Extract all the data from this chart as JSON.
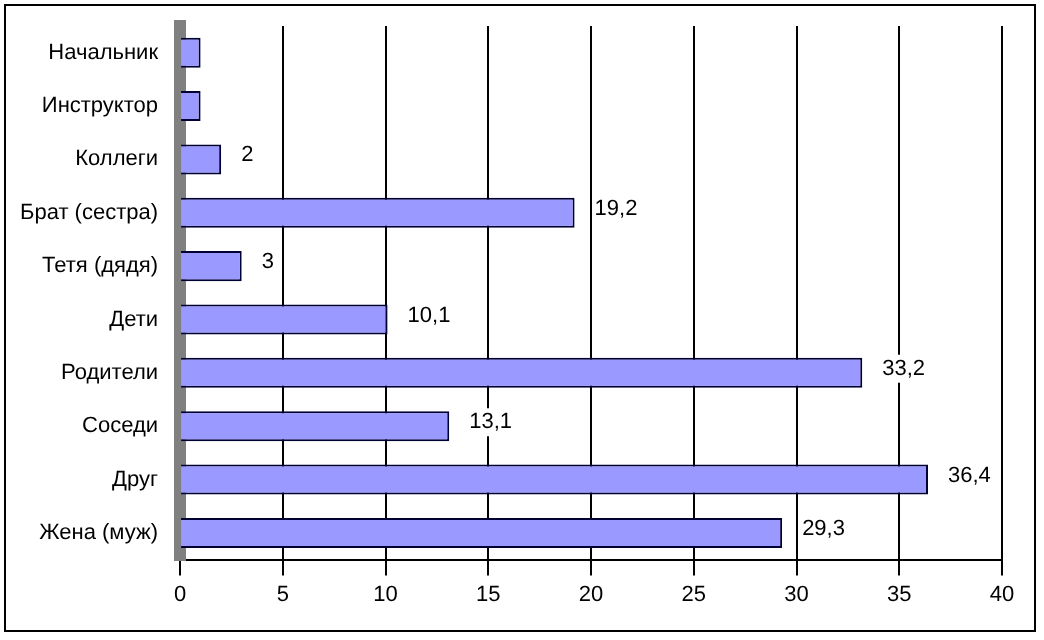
{
  "chart_data": {
    "type": "bar",
    "orientation": "horizontal",
    "categories": [
      "Начальник",
      "Инструктор",
      "Коллеги",
      "Брат (сестра)",
      "Тетя (дядя)",
      "Дети",
      "Родители",
      "Соседи",
      "Друг",
      "Жена (муж)"
    ],
    "values": [
      1,
      1,
      2,
      19.2,
      3,
      10.1,
      33.2,
      13.1,
      36.4,
      29.3
    ],
    "value_labels": [
      null,
      null,
      "2",
      "19,2",
      "3",
      "10,1",
      "33,2",
      "13,1",
      "36,4",
      "29,3"
    ],
    "color": "#9999ff",
    "xlim": [
      0,
      40
    ],
    "xticks": [
      0,
      5,
      10,
      15,
      20,
      25,
      30,
      35,
      40
    ],
    "grid": "x",
    "legend": false
  }
}
